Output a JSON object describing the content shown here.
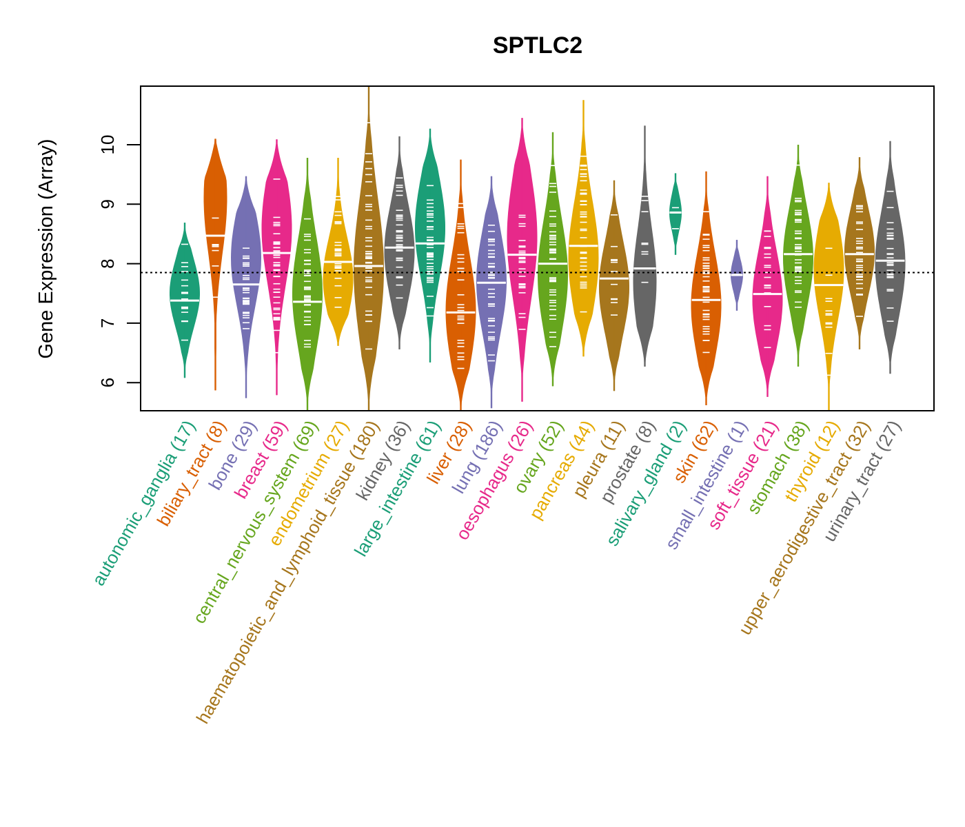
{
  "chart_data": {
    "type": "violin",
    "title": "SPTLC2",
    "xlabel": "",
    "ylabel": "Gene Expression (Array)",
    "ylim": [
      5.53,
      11.0
    ],
    "yticks": [
      6,
      7,
      8,
      9,
      10
    ],
    "reference_line": {
      "value": 7.85,
      "style": "dotted",
      "color": "#000000"
    },
    "grid": false,
    "legend": "none",
    "categories": [
      {
        "name": "autonomic_ganglia",
        "n": 17,
        "label": "autonomic_ganglia (17)",
        "color": "#1B9E77",
        "min": 6.08,
        "max": 8.69,
        "median": 7.38,
        "mode": 7.5
      },
      {
        "name": "biliary_tract",
        "n": 8,
        "label": "biliary_tract (8)",
        "color": "#D95F02",
        "min": 5.87,
        "max": 10.1,
        "median": 8.47,
        "mode": 9.1
      },
      {
        "name": "bone",
        "n": 29,
        "label": "bone (29)",
        "color": "#7570B3",
        "min": 5.74,
        "max": 9.47,
        "median": 7.65,
        "mode": 8.1
      },
      {
        "name": "breast",
        "n": 59,
        "label": "breast (59)",
        "color": "#E7298A",
        "min": 5.79,
        "max": 10.09,
        "median": 8.18,
        "mode": 8.6
      },
      {
        "name": "central_nervous_system",
        "n": 69,
        "label": "central_nervous_system (69)",
        "color": "#66A61E",
        "min": 5.53,
        "max": 9.78,
        "median": 7.36,
        "mode": 7.5
      },
      {
        "name": "endometrium",
        "n": 27,
        "label": "endometrium (27)",
        "color": "#E6AB02",
        "min": 6.62,
        "max": 9.78,
        "median": 8.03,
        "mode": 7.75
      },
      {
        "name": "haematopoietic_and_lymphoid_tissue",
        "n": 180,
        "label": "haematopoietic_and_lymphoid_tissue (180)",
        "color": "#A6761D",
        "min": 5.53,
        "max": 10.98,
        "median": 7.96,
        "mode": 7.9
      },
      {
        "name": "kidney",
        "n": 36,
        "label": "kidney (36)",
        "color": "#666666",
        "min": 6.56,
        "max": 10.14,
        "median": 8.27,
        "mode": 8.2
      },
      {
        "name": "large_intestine",
        "n": 61,
        "label": "large_intestine (61)",
        "color": "#1B9E77",
        "min": 6.34,
        "max": 10.27,
        "median": 8.34,
        "mode": 8.6
      },
      {
        "name": "liver",
        "n": 28,
        "label": "liver (28)",
        "color": "#D95F02",
        "min": 5.53,
        "max": 9.75,
        "median": 7.18,
        "mode": 7.2
      },
      {
        "name": "lung",
        "n": 186,
        "label": "lung (186)",
        "color": "#7570B3",
        "min": 5.57,
        "max": 9.47,
        "median": 7.68,
        "mode": 7.7
      },
      {
        "name": "oesophagus",
        "n": 26,
        "label": "oesophagus (26)",
        "color": "#E7298A",
        "min": 5.68,
        "max": 10.45,
        "median": 8.15,
        "mode": 8.45
      },
      {
        "name": "ovary",
        "n": 52,
        "label": "ovary (52)",
        "color": "#66A61E",
        "min": 5.94,
        "max": 10.21,
        "median": 8.0,
        "mode": 7.8
      },
      {
        "name": "pancreas",
        "n": 44,
        "label": "pancreas (44)",
        "color": "#E6AB02",
        "min": 6.44,
        "max": 10.75,
        "median": 8.3,
        "mode": 8.1
      },
      {
        "name": "pleura",
        "n": 11,
        "label": "pleura (11)",
        "color": "#A6761D",
        "min": 5.86,
        "max": 9.4,
        "median": 7.75,
        "mode": 7.6
      },
      {
        "name": "prostate",
        "n": 8,
        "label": "prostate (8)",
        "color": "#666666",
        "min": 6.27,
        "max": 10.32,
        "median": 7.92,
        "mode": 7.7
      },
      {
        "name": "salivary_gland",
        "n": 2,
        "label": "salivary_gland (2)",
        "color": "#1B9E77",
        "min": 8.15,
        "max": 9.52,
        "median": 8.86,
        "mode": 8.86
      },
      {
        "name": "skin",
        "n": 62,
        "label": "skin (62)",
        "color": "#D95F02",
        "min": 5.62,
        "max": 9.55,
        "median": 7.39,
        "mode": 7.3
      },
      {
        "name": "small_intestine",
        "n": 1,
        "label": "small_intestine (1)",
        "color": "#7570B3",
        "min": 7.21,
        "max": 8.4,
        "median": 7.81,
        "mode": 7.81
      },
      {
        "name": "soft_tissue",
        "n": 21,
        "label": "soft_tissue (21)",
        "color": "#E7298A",
        "min": 5.76,
        "max": 9.47,
        "median": 7.49,
        "mode": 7.4
      },
      {
        "name": "stomach",
        "n": 38,
        "label": "stomach (38)",
        "color": "#66A61E",
        "min": 6.27,
        "max": 10.0,
        "median": 8.16,
        "mode": 8.1
      },
      {
        "name": "thyroid",
        "n": 12,
        "label": "thyroid (12)",
        "color": "#E6AB02",
        "min": 5.53,
        "max": 9.36,
        "median": 7.64,
        "mode": 7.9
      },
      {
        "name": "upper_aerodigestive_tract",
        "n": 32,
        "label": "upper_aerodigestive_tract (32)",
        "color": "#A6761D",
        "min": 6.56,
        "max": 9.79,
        "median": 8.16,
        "mode": 8.2
      },
      {
        "name": "urinary_tract",
        "n": 27,
        "label": "urinary_tract (27)",
        "color": "#666666",
        "min": 6.15,
        "max": 10.06,
        "median": 8.05,
        "mode": 8.0
      }
    ]
  }
}
